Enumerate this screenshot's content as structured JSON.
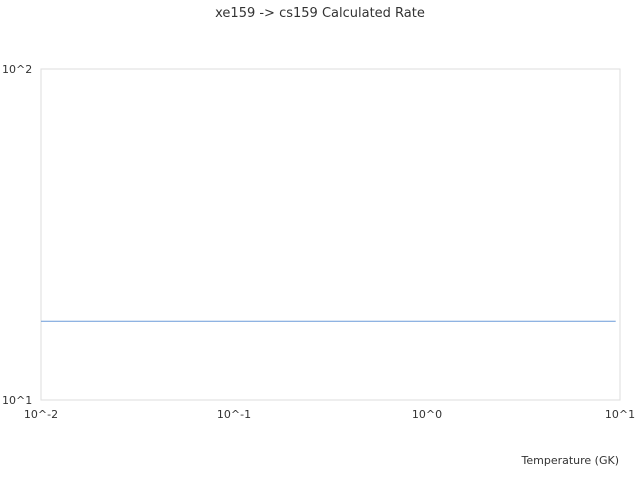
{
  "chart_data": {
    "type": "line",
    "title": "xe159 -> cs159 Calculated Rate",
    "xlabel": "Temperature (GK)",
    "ylabel": "",
    "xscale": "log",
    "yscale": "log",
    "xlim": [
      0.01,
      10
    ],
    "ylim": [
      10,
      100
    ],
    "x_ticks": [
      "10^-2",
      "10^-1",
      "10^0",
      "10^1"
    ],
    "y_ticks": [
      "10^1",
      "10^2"
    ],
    "grid": false,
    "series": [
      {
        "color": "#6a9ad8",
        "x": [
          0.01,
          9.5
        ],
        "y": [
          17.3,
          17.3
        ]
      }
    ]
  }
}
